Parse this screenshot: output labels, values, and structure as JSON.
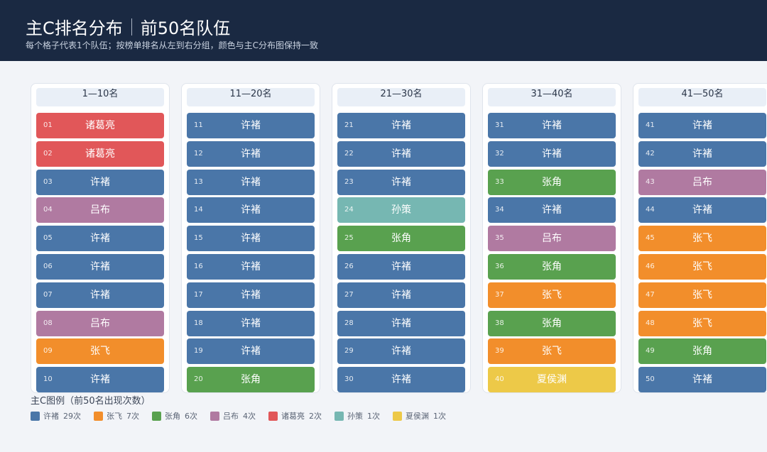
{
  "header": {
    "title_main": "主C排名分布",
    "title_sub": "前50名队伍",
    "subtitle": "每个格子代表1个队伍；按榜单排名从左到右分组，颜色与主C分布图保持一致"
  },
  "colors": {
    "许褚": "#4a76a8",
    "张飞": "#f28e2b",
    "张角": "#59a14f",
    "吕布": "#b07aa1",
    "诸葛亮": "#e15759",
    "孙策": "#76b7b2",
    "夏侯渊": "#edc948"
  },
  "chart_data": {
    "type": "table",
    "groups": [
      {
        "label": "1—10名",
        "cells": [
          {
            "rank": "01",
            "name": "诸葛亮"
          },
          {
            "rank": "02",
            "name": "诸葛亮"
          },
          {
            "rank": "03",
            "name": "许褚"
          },
          {
            "rank": "04",
            "name": "吕布"
          },
          {
            "rank": "05",
            "name": "许褚"
          },
          {
            "rank": "06",
            "name": "许褚"
          },
          {
            "rank": "07",
            "name": "许褚"
          },
          {
            "rank": "08",
            "name": "吕布"
          },
          {
            "rank": "09",
            "name": "张飞"
          },
          {
            "rank": "10",
            "name": "许褚"
          }
        ]
      },
      {
        "label": "11—20名",
        "cells": [
          {
            "rank": "11",
            "name": "许褚"
          },
          {
            "rank": "12",
            "name": "许褚"
          },
          {
            "rank": "13",
            "name": "许褚"
          },
          {
            "rank": "14",
            "name": "许褚"
          },
          {
            "rank": "15",
            "name": "许褚"
          },
          {
            "rank": "16",
            "name": "许褚"
          },
          {
            "rank": "17",
            "name": "许褚"
          },
          {
            "rank": "18",
            "name": "许褚"
          },
          {
            "rank": "19",
            "name": "许褚"
          },
          {
            "rank": "20",
            "name": "张角"
          }
        ]
      },
      {
        "label": "21—30名",
        "cells": [
          {
            "rank": "21",
            "name": "许褚"
          },
          {
            "rank": "22",
            "name": "许褚"
          },
          {
            "rank": "23",
            "name": "许褚"
          },
          {
            "rank": "24",
            "name": "孙策"
          },
          {
            "rank": "25",
            "name": "张角"
          },
          {
            "rank": "26",
            "name": "许褚"
          },
          {
            "rank": "27",
            "name": "许褚"
          },
          {
            "rank": "28",
            "name": "许褚"
          },
          {
            "rank": "29",
            "name": "许褚"
          },
          {
            "rank": "30",
            "name": "许褚"
          }
        ]
      },
      {
        "label": "31—40名",
        "cells": [
          {
            "rank": "31",
            "name": "许褚"
          },
          {
            "rank": "32",
            "name": "许褚"
          },
          {
            "rank": "33",
            "name": "张角"
          },
          {
            "rank": "34",
            "name": "许褚"
          },
          {
            "rank": "35",
            "name": "吕布"
          },
          {
            "rank": "36",
            "name": "张角"
          },
          {
            "rank": "37",
            "name": "张飞"
          },
          {
            "rank": "38",
            "name": "张角"
          },
          {
            "rank": "39",
            "name": "张飞"
          },
          {
            "rank": "40",
            "name": "夏侯渊"
          }
        ]
      },
      {
        "label": "41—50名",
        "cells": [
          {
            "rank": "41",
            "name": "许褚"
          },
          {
            "rank": "42",
            "name": "许褚"
          },
          {
            "rank": "43",
            "name": "吕布"
          },
          {
            "rank": "44",
            "name": "许褚"
          },
          {
            "rank": "45",
            "name": "张飞"
          },
          {
            "rank": "46",
            "name": "张飞"
          },
          {
            "rank": "47",
            "name": "张飞"
          },
          {
            "rank": "48",
            "name": "张飞"
          },
          {
            "rank": "49",
            "name": "张角"
          },
          {
            "rank": "50",
            "name": "许褚"
          }
        ]
      }
    ]
  },
  "legend": {
    "title": "主C图例（前50名出现次数）",
    "items": [
      {
        "name": "许褚",
        "count": "29次"
      },
      {
        "name": "张飞",
        "count": "7次"
      },
      {
        "name": "张角",
        "count": "6次"
      },
      {
        "name": "吕布",
        "count": "4次"
      },
      {
        "name": "诸葛亮",
        "count": "2次"
      },
      {
        "name": "孙策",
        "count": "1次"
      },
      {
        "name": "夏侯渊",
        "count": "1次"
      }
    ]
  }
}
